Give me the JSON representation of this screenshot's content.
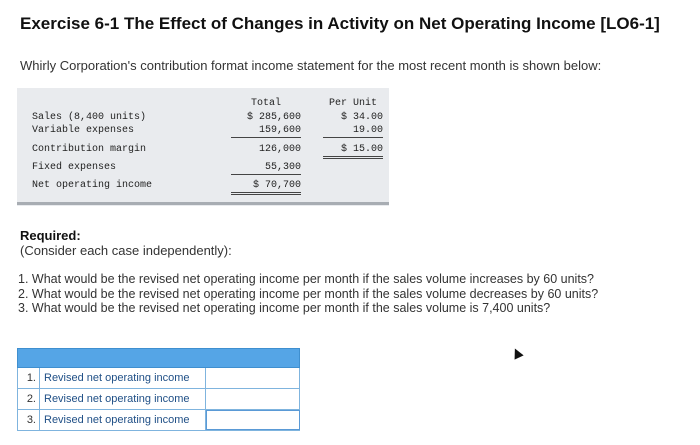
{
  "title": "Exercise 6-1 The Effect of Changes in Activity on Net Operating Income [LO6-1]",
  "intro": "Whirly Corporation's contribution format income statement for the most recent month is shown below:",
  "statement": {
    "header": {
      "total": "Total",
      "per_unit": "Per Unit"
    },
    "rows": [
      {
        "label": "Sales (8,400 units)",
        "total": "$ 285,600",
        "per_unit": "$ 34.00"
      },
      {
        "label": "Variable expenses",
        "total": "159,600",
        "per_unit": "19.00"
      },
      {
        "label": "Contribution margin",
        "total": "126,000",
        "per_unit": "$ 15.00"
      },
      {
        "label": "Fixed expenses",
        "total": "55,300",
        "per_unit": ""
      },
      {
        "label": "Net operating income",
        "total": "$ 70,700",
        "per_unit": ""
      }
    ]
  },
  "required": {
    "heading": "Required:",
    "note": "(Consider each case independently):",
    "questions": [
      "1. What would be the revised net operating income per month if the sales volume increases by 60 units?",
      "2. What would be the revised net operating income per month if the sales volume decreases by 60 units?",
      "3. What would be the revised net operating income per month if the sales volume is 7,400 units?"
    ]
  },
  "answers": [
    {
      "num": "1.",
      "label": "Revised net operating income",
      "value": ""
    },
    {
      "num": "2.",
      "label": "Revised net operating income",
      "value": ""
    },
    {
      "num": "3.",
      "label": "Revised net operating income",
      "value": ""
    }
  ]
}
